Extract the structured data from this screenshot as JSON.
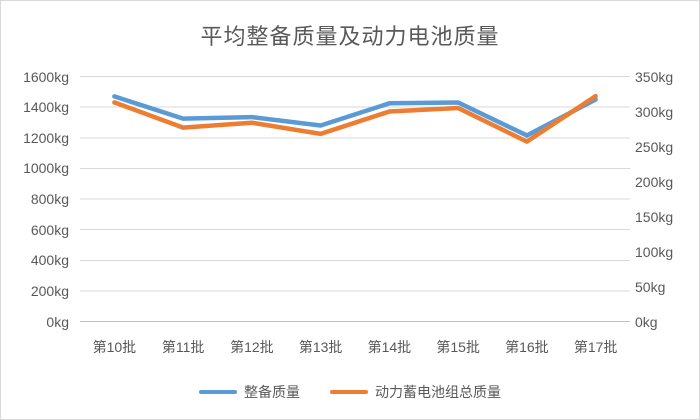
{
  "chart_data": {
    "type": "line",
    "title": "平均整备质量及动力电池质量",
    "categories": [
      "第10批",
      "第11批",
      "第12批",
      "第13批",
      "第14批",
      "第15批",
      "第16批",
      "第17批"
    ],
    "series": [
      {
        "name": "整备质量",
        "axis": "left",
        "color": "#5B9BD5",
        "values": [
          1470,
          1325,
          1335,
          1280,
          1425,
          1430,
          1215,
          1450
        ]
      },
      {
        "name": "动力蓄电池组总质量",
        "axis": "right",
        "color": "#ED7D31",
        "values": [
          313,
          277,
          284,
          268,
          300,
          305,
          257,
          322
        ]
      }
    ],
    "left_axis": {
      "min": 0,
      "max": 1600,
      "step": 200,
      "unit": "kg",
      "tick_labels": [
        "0kg",
        "200kg",
        "400kg",
        "600kg",
        "800kg",
        "1000kg",
        "1200kg",
        "1400kg",
        "1600kg"
      ]
    },
    "right_axis": {
      "min": 0,
      "max": 350,
      "step": 50,
      "unit": "kg",
      "tick_labels": [
        "0kg",
        "50kg",
        "100kg",
        "150kg",
        "200kg",
        "250kg",
        "300kg",
        "350kg"
      ]
    },
    "grid": true,
    "legend_position": "bottom",
    "colors": {
      "text": "#595959",
      "gridline": "#D9D9D9",
      "axis_line": "#BFBFBF",
      "background": "#FFFFFF",
      "border": "#D9D9D9"
    }
  }
}
